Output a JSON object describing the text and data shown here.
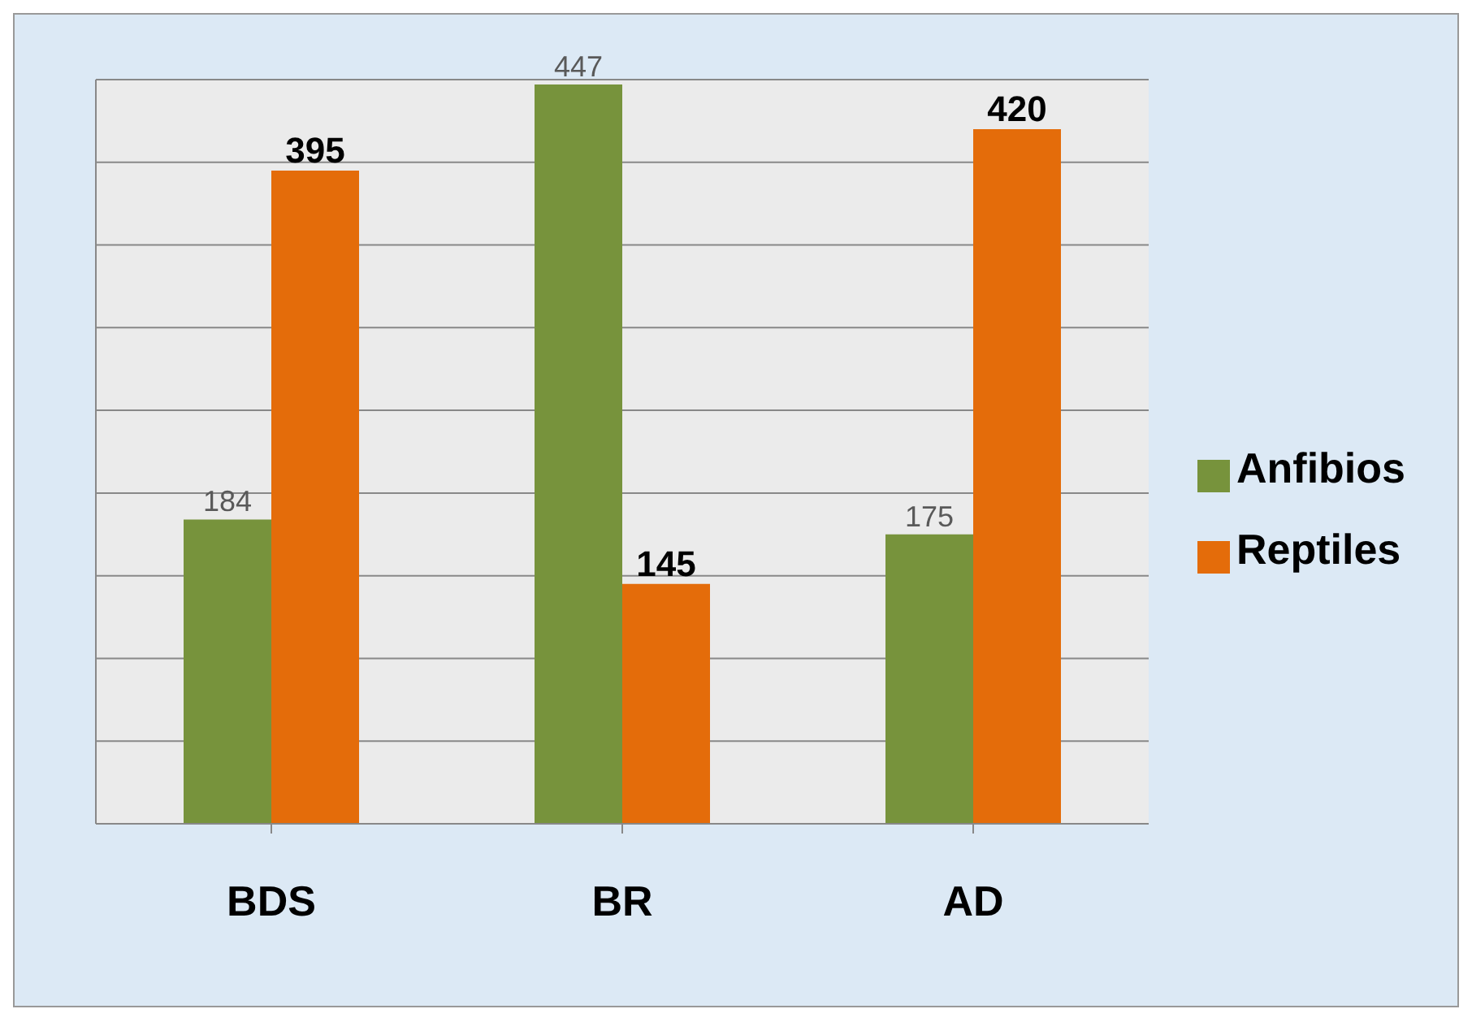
{
  "chart_data": {
    "type": "bar",
    "categories": [
      "BDS",
      "BR",
      "AD"
    ],
    "series": [
      {
        "name": "Anfibios",
        "color": "#77933c",
        "values": [
          184,
          447,
          175
        ]
      },
      {
        "name": "Reptiles",
        "color": "#e46c0a",
        "values": [
          395,
          145,
          420
        ]
      }
    ],
    "tick_labels": "x",
    "grid": "y",
    "legend": "right",
    "data_labels": true
  }
}
